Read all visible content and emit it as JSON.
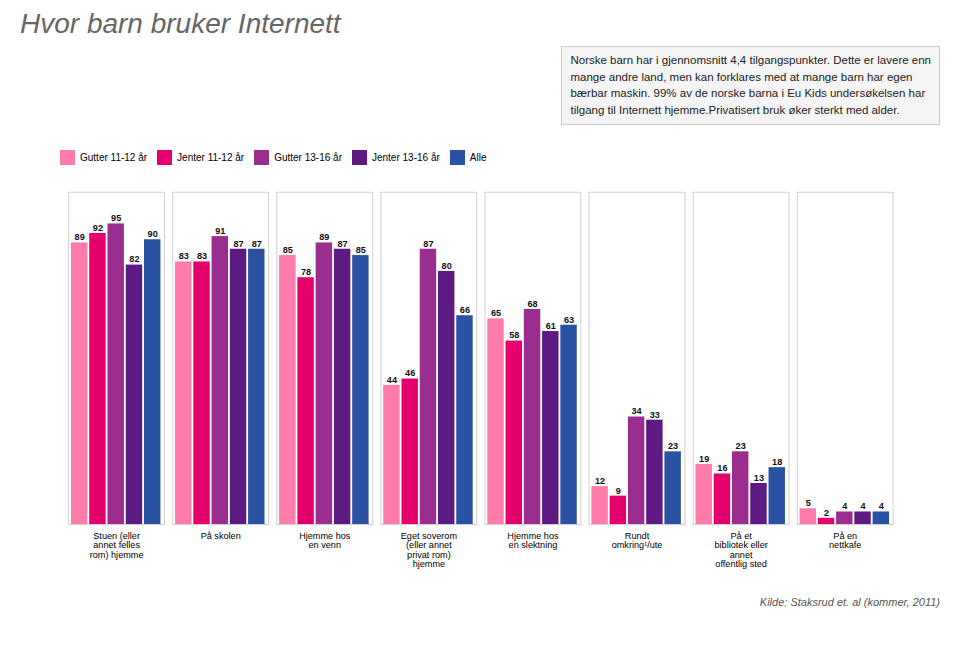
{
  "chart_data": {
    "type": "bar",
    "title": "Hvor barn bruker Internett",
    "categories": [
      "Stuen (eller\nannet felles\nrom) hjemme",
      "På skolen",
      "Hjemme hos\nen venn",
      "Eget soverom\n(eller annet\nprivat rom)\nhjemme",
      "Hjemme hos\nen slektning",
      "Rundt\nomkring¹/ute",
      "På et\nbibliotek eller\nannet\noffentlig sted",
      "På en\nnettkafe"
    ],
    "series": [
      {
        "name": "Gutter 11-12 år",
        "color": "#FF7BAC",
        "values": [
          89,
          83,
          85,
          44,
          65,
          12,
          19,
          5
        ]
      },
      {
        "name": "Jenter 11-12 år",
        "color": "#E5006E",
        "values": [
          92,
          83,
          78,
          46,
          58,
          9,
          16,
          2
        ]
      },
      {
        "name": "Gutter 13-16 år",
        "color": "#9B2D8E",
        "values": [
          95,
          91,
          89,
          87,
          68,
          34,
          23,
          4
        ]
      },
      {
        "name": "Jenter 13-16 år",
        "color": "#5C1A82",
        "values": [
          82,
          87,
          87,
          80,
          61,
          33,
          13,
          4
        ]
      },
      {
        "name": "Alle",
        "color": "#2952A3",
        "values": [
          90,
          87,
          85,
          66,
          63,
          23,
          18,
          4
        ]
      }
    ],
    "annotations": [
      "Norske barn har i gjennomsnitt 4,4 tilgangspunkter. Dette er lavere enn\nmange andre land, men kan forklares med at mange barn har egen\nbærbar maskin. 99% av  de norske barna i Eu Kids undersøkelsen har\ntilgang til Internett hjemme.Privatisert bruk øker sterkt med alder.",
      "Kilde: Staksrud et. al (kommer, 2011)"
    ],
    "ylim": [
      0,
      105
    ],
    "data_labels": true,
    "legend": "top",
    "tick_labels": "x",
    "grid": false
  }
}
